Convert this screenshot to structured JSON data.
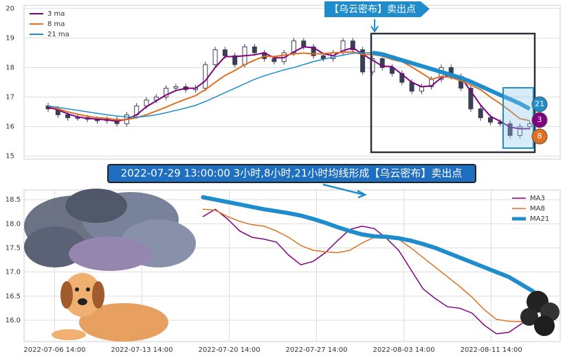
{
  "chart_data": [
    {
      "type": "candlestick",
      "legend": "upper left",
      "grid": true,
      "ylim": [
        14.9,
        20.1
      ],
      "yticks": [
        15,
        16,
        17,
        18,
        19,
        20
      ],
      "ohlc": {
        "open": [
          16.7,
          16.6,
          16.4,
          16.3,
          16.3,
          16.25,
          16.2,
          16.25,
          16.1,
          16.4,
          16.7,
          16.9,
          17.0,
          17.3,
          17.35,
          17.25,
          17.3,
          18.1,
          18.6,
          18.4,
          18.1,
          18.7,
          18.5,
          18.3,
          18.2,
          18.5,
          18.9,
          18.7,
          18.4,
          18.3,
          18.5,
          18.9,
          18.6,
          17.85,
          18.3,
          18.0,
          17.8,
          17.5,
          17.2,
          17.35,
          17.6,
          18.0,
          17.7,
          17.3,
          16.6,
          16.3,
          16.15,
          16.1,
          15.7,
          16.0
        ],
        "high": [
          16.8,
          16.7,
          16.5,
          16.4,
          16.4,
          16.35,
          16.35,
          16.35,
          16.5,
          16.8,
          17.0,
          17.1,
          17.4,
          17.45,
          17.45,
          17.4,
          18.2,
          18.7,
          18.7,
          18.5,
          18.8,
          18.8,
          18.6,
          18.4,
          18.6,
          19.0,
          19.0,
          18.8,
          18.5,
          18.6,
          19.0,
          19.0,
          18.7,
          18.4,
          18.4,
          18.1,
          17.9,
          17.6,
          17.45,
          17.7,
          18.1,
          18.1,
          17.8,
          17.4,
          16.7,
          16.4,
          16.25,
          16.2,
          16.1,
          16.2
        ],
        "low": [
          16.5,
          16.3,
          16.2,
          16.2,
          16.15,
          16.1,
          16.1,
          16.0,
          16.0,
          16.3,
          16.6,
          16.8,
          16.9,
          17.2,
          17.15,
          17.15,
          17.2,
          18.0,
          18.3,
          18.0,
          18.0,
          18.4,
          18.2,
          18.1,
          18.1,
          18.4,
          18.6,
          18.3,
          18.2,
          18.2,
          18.4,
          18.5,
          17.75,
          17.75,
          17.9,
          17.7,
          17.4,
          17.1,
          17.1,
          17.25,
          17.5,
          17.6,
          17.2,
          16.5,
          16.2,
          16.05,
          16.0,
          15.6,
          15.6,
          15.9
        ],
        "close": [
          16.6,
          16.4,
          16.3,
          16.3,
          16.25,
          16.2,
          16.25,
          16.1,
          16.4,
          16.7,
          16.9,
          17.0,
          17.3,
          17.35,
          17.25,
          17.3,
          18.1,
          18.6,
          18.4,
          18.1,
          18.7,
          18.5,
          18.3,
          18.2,
          18.5,
          18.9,
          18.7,
          18.4,
          18.3,
          18.5,
          18.9,
          18.6,
          17.85,
          18.3,
          18.0,
          17.8,
          17.5,
          17.2,
          17.35,
          17.6,
          18.0,
          17.7,
          17.3,
          16.6,
          16.3,
          16.15,
          16.1,
          15.7,
          16.0,
          16.1
        ],
        "up_color": "#ffffff",
        "down_color": "#3a3f55"
      },
      "series": [
        {
          "name": "3 ma",
          "color": "#800080",
          "values": [
            16.65,
            16.57,
            16.43,
            16.33,
            16.28,
            16.25,
            16.23,
            16.18,
            16.25,
            16.4,
            16.67,
            16.87,
            17.07,
            17.22,
            17.3,
            17.3,
            17.55,
            18.0,
            18.37,
            18.37,
            18.4,
            18.43,
            18.5,
            18.33,
            18.33,
            18.53,
            18.7,
            18.67,
            18.47,
            18.4,
            18.57,
            18.67,
            18.45,
            18.25,
            18.05,
            18.03,
            17.77,
            17.5,
            17.35,
            17.38,
            17.65,
            17.77,
            17.67,
            17.2,
            16.73,
            16.35,
            16.18,
            15.98,
            15.93,
            15.93
          ]
        },
        {
          "name": "8 ma",
          "color": "#e07020",
          "values": [
            16.7,
            16.6,
            16.5,
            16.42,
            16.35,
            16.3,
            16.28,
            16.23,
            16.24,
            16.3,
            16.4,
            16.53,
            16.66,
            16.8,
            16.93,
            17.05,
            17.25,
            17.5,
            17.73,
            17.9,
            18.1,
            18.25,
            18.38,
            18.37,
            18.42,
            18.46,
            18.49,
            18.46,
            18.47,
            18.5,
            18.51,
            18.53,
            18.44,
            18.44,
            18.39,
            18.27,
            18.2,
            18.02,
            17.81,
            17.6,
            17.7,
            17.66,
            17.55,
            17.41,
            17.25,
            17.0,
            16.78,
            16.53,
            16.27,
            16.2
          ]
        },
        {
          "name": "21 ma",
          "color": "#1f8ccc",
          "values": [
            16.7,
            16.65,
            16.6,
            16.55,
            16.5,
            16.45,
            16.4,
            16.36,
            16.33,
            16.32,
            16.35,
            16.4,
            16.47,
            16.55,
            16.63,
            16.72,
            16.85,
            17.0,
            17.15,
            17.3,
            17.45,
            17.6,
            17.72,
            17.82,
            17.92,
            18.0,
            18.1,
            18.2,
            18.28,
            18.35,
            18.42,
            18.48,
            18.5,
            18.5,
            18.45,
            18.35,
            18.25,
            18.15,
            18.05,
            17.95,
            17.85,
            17.75,
            17.65,
            17.52,
            17.37,
            17.22,
            17.07,
            16.93,
            16.78,
            16.6
          ]
        }
      ],
      "callout": "【乌云密布】卖出点",
      "markers": [
        "21",
        "3",
        "8"
      ]
    },
    {
      "type": "line",
      "legend": "upper right",
      "grid": true,
      "banner": "2022-07-29 13:00:00 3小时,8小时,21小时均线形成【乌云密布】卖出点",
      "xlim": [
        -0.35,
        5.79
      ],
      "ylim": [
        15.56,
        18.7
      ],
      "xticks": [
        {
          "value": 0,
          "label": "2022-07-06 14:00"
        },
        {
          "value": 1,
          "label": "2022-07-13 14:00"
        },
        {
          "value": 2,
          "label": "2022-07-20 14:00"
        },
        {
          "value": 3,
          "label": "2022-07-27 14:00"
        },
        {
          "value": 4,
          "label": "2022-08-03 14:00"
        },
        {
          "value": 5,
          "label": "2022-08-11 14:00"
        }
      ],
      "yticks": [
        {
          "value": 16.0,
          "label": "16.0"
        },
        {
          "value": 16.5,
          "label": "16.5"
        },
        {
          "value": 17.0,
          "label": "17.0"
        },
        {
          "value": 17.5,
          "label": "17.5"
        },
        {
          "value": 18.0,
          "label": "18.0"
        },
        {
          "value": 18.5,
          "label": "18.5"
        }
      ],
      "x": [
        1.7,
        1.84,
        1.98,
        2.12,
        2.26,
        2.4,
        2.54,
        2.68,
        2.82,
        2.96,
        3.1,
        3.24,
        3.38,
        3.52,
        3.66,
        3.8,
        3.94,
        4.08,
        4.22,
        4.36,
        4.5,
        4.64,
        4.78,
        4.92,
        5.06,
        5.2,
        5.34,
        5.48
      ],
      "series": [
        {
          "name": "MA3",
          "color": "#800080",
          "width": 1.5,
          "values": [
            18.15,
            18.3,
            18.1,
            17.85,
            17.72,
            17.68,
            17.62,
            17.35,
            17.15,
            17.22,
            17.4,
            17.65,
            17.88,
            17.95,
            17.9,
            17.7,
            17.45,
            17.05,
            16.65,
            16.45,
            16.28,
            16.25,
            16.15,
            15.9,
            15.72,
            15.75,
            15.92,
            16.1
          ]
        },
        {
          "name": "MA8",
          "color": "#e07020",
          "width": 1.5,
          "values": [
            18.3,
            18.28,
            18.15,
            18.05,
            17.98,
            17.95,
            17.85,
            17.72,
            17.55,
            17.45,
            17.42,
            17.4,
            17.45,
            17.6,
            17.72,
            17.75,
            17.68,
            17.5,
            17.3,
            17.1,
            16.9,
            16.7,
            16.48,
            16.22,
            16.02,
            15.98,
            15.97,
            16.0
          ]
        },
        {
          "name": "MA21",
          "color": "#1f8ccc",
          "width": 6,
          "values": [
            18.55,
            18.5,
            18.45,
            18.4,
            18.35,
            18.3,
            18.26,
            18.22,
            18.17,
            18.1,
            18.02,
            17.93,
            17.85,
            17.78,
            17.74,
            17.73,
            17.7,
            17.65,
            17.58,
            17.5,
            17.4,
            17.3,
            17.2,
            17.1,
            17.0,
            16.9,
            16.75,
            16.6
          ]
        }
      ]
    }
  ]
}
